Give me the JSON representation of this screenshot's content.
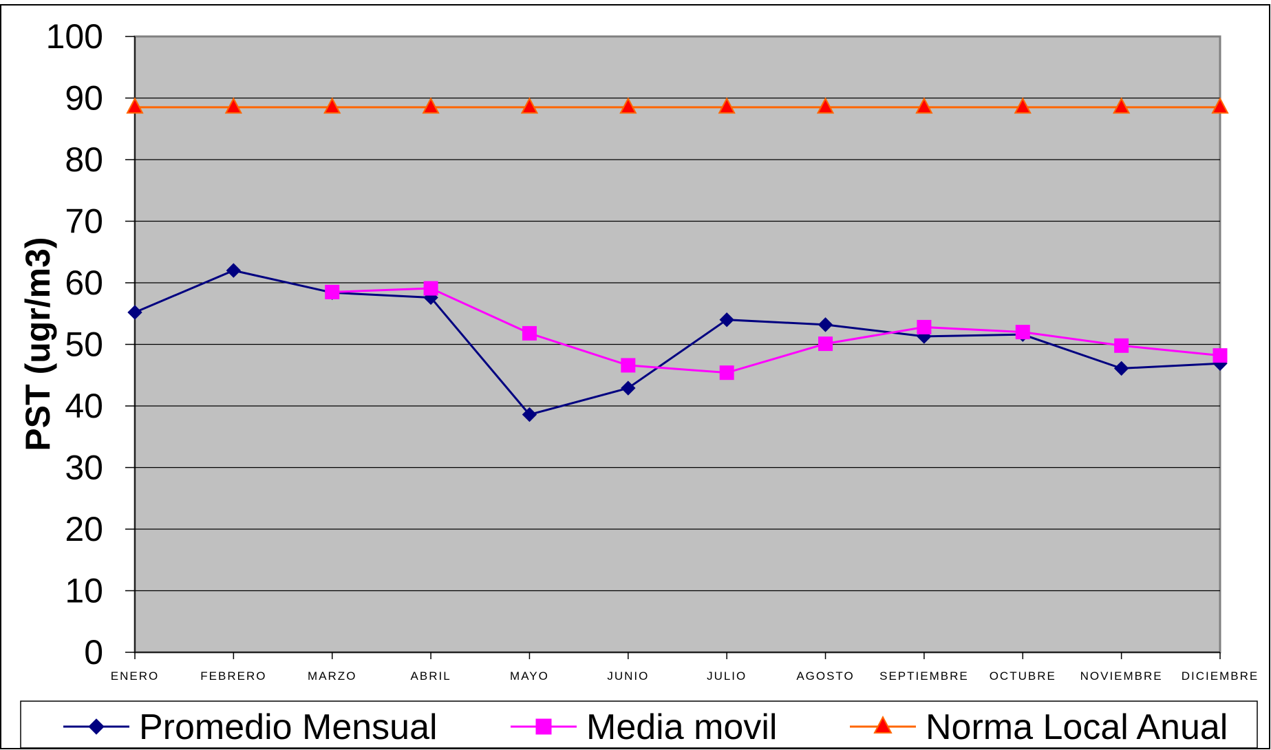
{
  "chart_data": {
    "type": "line",
    "title": "",
    "xlabel": "",
    "ylabel": "PST (ugr/m3)",
    "ylim": [
      0,
      100
    ],
    "yticks": [
      0,
      10,
      20,
      30,
      40,
      50,
      60,
      70,
      80,
      90,
      100
    ],
    "grid": true,
    "legend_position": "bottom",
    "plot_background": "#C0C0C0",
    "categories": [
      "ENERO",
      "FEBRERO",
      "MARZO",
      "ABRIL",
      "MAYO",
      "JUNIO",
      "JULIO",
      "AGOSTO",
      "SEPTIEMBRE",
      "OCTUBRE",
      "NOVIEMBRE",
      "DICIEMBRE"
    ],
    "series": [
      {
        "name": "Promedio Mensual",
        "color": "#000080",
        "marker": "diamond",
        "values": [
          55.2,
          62.0,
          58.4,
          57.6,
          38.6,
          42.9,
          54.0,
          53.2,
          51.3,
          51.6,
          46.1,
          46.9
        ]
      },
      {
        "name": "Media movil",
        "color": "#FF00FF",
        "marker": "square",
        "values": [
          null,
          null,
          58.5,
          59.1,
          51.8,
          46.6,
          45.4,
          50.1,
          52.8,
          52.0,
          49.8,
          48.2
        ]
      },
      {
        "name": "Norma Local Anual",
        "color": "#FF6600",
        "marker_fill": "#FF0000",
        "marker": "triangle",
        "values": [
          88.5,
          88.5,
          88.5,
          88.5,
          88.5,
          88.5,
          88.5,
          88.5,
          88.5,
          88.5,
          88.5,
          88.5
        ]
      }
    ]
  }
}
